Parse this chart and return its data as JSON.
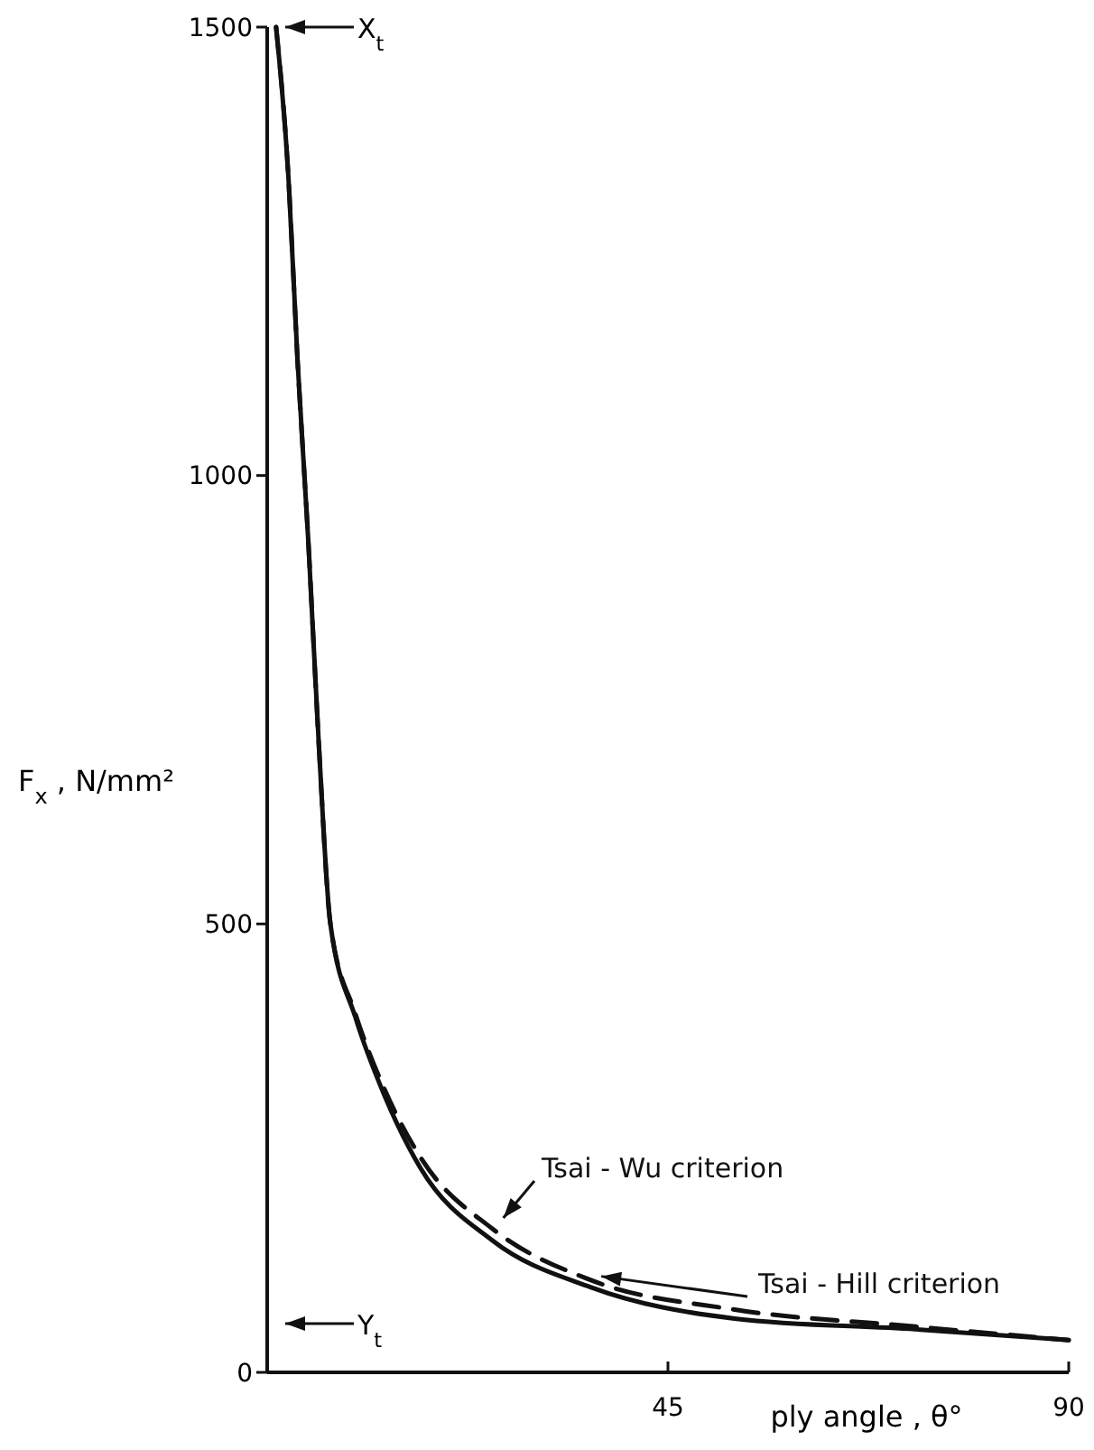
{
  "chart_data": {
    "type": "line",
    "xlabel": "ply angle , θ°",
    "ylabel": "F$_{x}$ , N/mm²",
    "xlim": [
      0,
      90
    ],
    "ylim": [
      0,
      1500
    ],
    "xticks": [
      45,
      90
    ],
    "yticks": [
      0,
      500,
      1000,
      1500
    ],
    "grid": false,
    "legend": false,
    "marker": "none",
    "series": [
      {
        "name": "Tsai - Hill  criterion",
        "color": "#111111",
        "line_style": "solid",
        "x": [
          1,
          2.4,
          3.4,
          4.6,
          5.8,
          7.1,
          9.9,
          13.2,
          17.2,
          25.3,
          36.3,
          52.5,
          72.8,
          90
        ],
        "values": [
          1500,
          1330,
          1130,
          930,
          700,
          500,
          396,
          308,
          228,
          147,
          95,
          60,
          48,
          36
        ]
      },
      {
        "name": "Tsai - Wu  criterion",
        "color": "#111111",
        "line_style": "dashed",
        "x": [
          1,
          2.4,
          3.4,
          4.6,
          5.8,
          7.1,
          9.9,
          13.2,
          17.2,
          25.3,
          36.3,
          52.5,
          72.8,
          90
        ],
        "values": [
          1500,
          1330,
          1130,
          930,
          700,
          500,
          400,
          315,
          240,
          160,
          103,
          70,
          51,
          36
        ]
      }
    ],
    "annotations": [
      "X$_{t}$",
      "Y$_{t}$"
    ]
  }
}
